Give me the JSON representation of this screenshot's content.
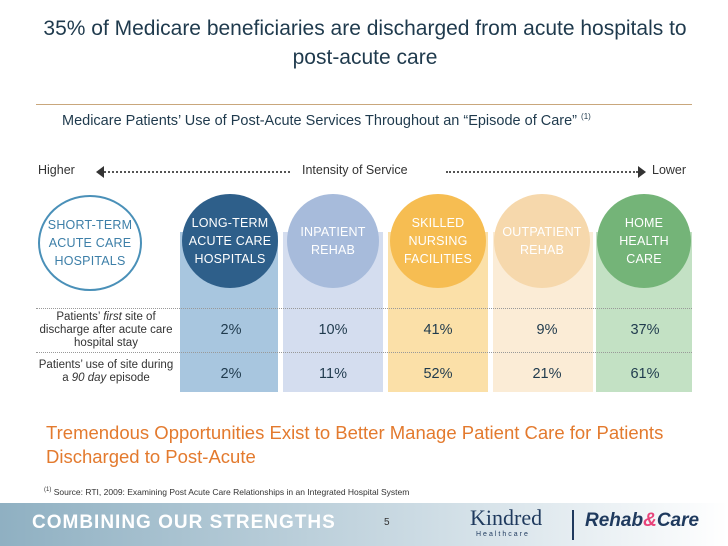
{
  "title": "35% of Medicare beneficiaries are discharged from acute hospitals to post-acute care",
  "subtitle": "Medicare Patients’ Use of Post-Acute Services Throughout an “Episode of Care”",
  "subtitle_footnote": "(1)",
  "intensity": {
    "higher": "Higher",
    "label": "Intensity of Service",
    "lower": "Lower"
  },
  "settings": [
    {
      "name": "SHORT-TERM ACUTE CARE HOSPITALS",
      "fill": "#ffffff",
      "border": "#4a90b8",
      "text": "#3d7fa8",
      "column": ""
    },
    {
      "name": "LONG-TERM ACUTE CARE HOSPITALS",
      "fill": "#2e5f8a",
      "border": "#2e5f8a",
      "text": "#ffffff",
      "column": "#a8c6df"
    },
    {
      "name": "INPATIENT REHAB",
      "fill": "#a7bbdb",
      "border": "#a7bbdb",
      "text": "#ffffff",
      "column": "#d4ddef"
    },
    {
      "name": "SKILLED NURSING FACILITIES",
      "fill": "#f6bd52",
      "border": "#f6bd52",
      "text": "#ffffff",
      "column": "#fbe0a8"
    },
    {
      "name": "OUTPATIENT REHAB",
      "fill": "#f6d8ac",
      "border": "#f6d8ac",
      "text": "#ffffff",
      "column": "#fbecd6"
    },
    {
      "name": "HOME HEALTH CARE",
      "fill": "#74b478",
      "border": "#74b478",
      "text": "#ffffff",
      "column": "#c3e1c4"
    }
  ],
  "rows": [
    {
      "label_pre": "Patients’ ",
      "label_em": "first",
      "label_post": " site of discharge after acute care hospital stay",
      "values": [
        "2%",
        "10%",
        "41%",
        "9%",
        "37%"
      ]
    },
    {
      "label_pre": "Patients’ use of site during a ",
      "label_em": "90 day",
      "label_post": " episode",
      "values": [
        "2%",
        "11%",
        "52%",
        "21%",
        "61%"
      ]
    }
  ],
  "callout": "Tremendous Opportunities Exist to Better Manage Patient Care for Patients Discharged to Post-Acute",
  "source_footnote": "(1)",
  "source": "Source: RTI, 2009: Examining Post Acute Care Relationships in an Integrated Hospital System",
  "footer": {
    "tagline": "COMBINING OUR STRENGTHS",
    "page": "5",
    "logo_kindred": "Kindred",
    "logo_kindred_sub": "Healthcare",
    "logo_rehab_a": "Rehab",
    "logo_rehab_b": "Care",
    "logo_amp": "&"
  }
}
